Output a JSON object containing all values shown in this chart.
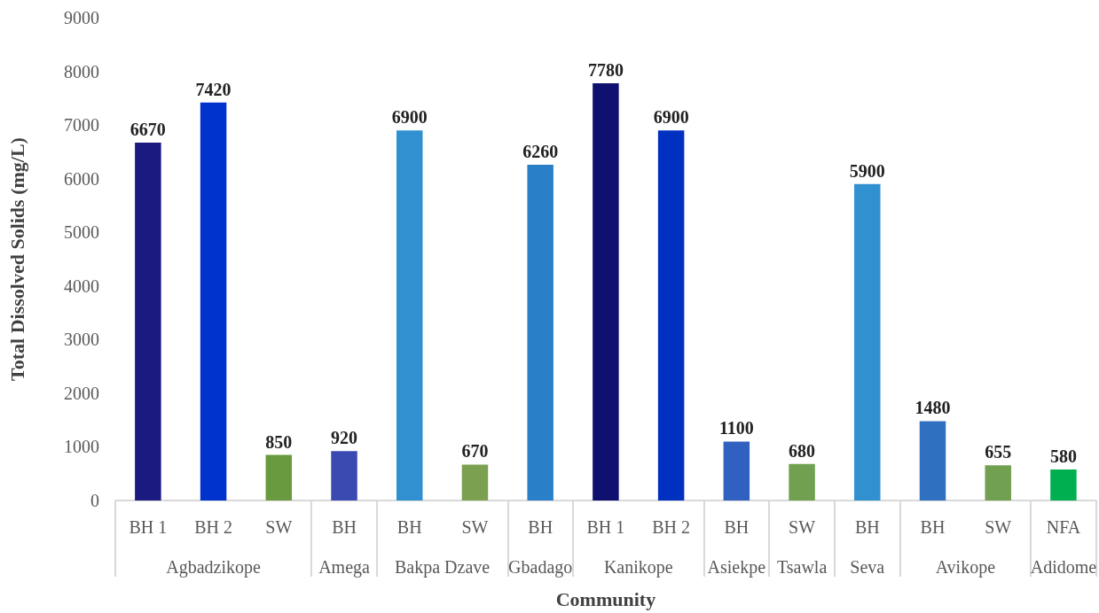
{
  "chart_data": {
    "type": "bar",
    "xlabel": "Community",
    "ylabel": "Total Dissolved Solids (mg/L)",
    "categories": [
      "BH 1",
      "BH 2",
      "SW",
      "BH",
      "BH",
      "SW",
      "BH",
      "BH 1",
      "BH 2",
      "BH",
      "SW",
      "BH",
      "BH",
      "SW",
      "NFA"
    ],
    "values": [
      6670,
      7420,
      850,
      920,
      6900,
      670,
      6260,
      7780,
      6900,
      1100,
      680,
      5900,
      1480,
      655,
      580
    ],
    "colors": [
      "#1a1a80",
      "#0033cc",
      "#6a9a40",
      "#3a4ab0",
      "#3090d0",
      "#7aa050",
      "#2a80c8",
      "#101070",
      "#0030c0",
      "#3060c0",
      "#70a050",
      "#3090d0",
      "#3070c0",
      "#70a050",
      "#00b050"
    ],
    "annotations": [
      "Agbadzikope",
      "Amega",
      "Bakpa Dzave",
      "Gbadago",
      "Kanikope",
      "Asiekpe",
      "Tsawla",
      "Seva",
      "Avikope",
      "Adidome"
    ],
    "ylim": [
      0,
      9000
    ],
    "yticks": [
      0,
      1000,
      2000,
      3000,
      4000,
      5000,
      6000,
      7000,
      8000,
      9000
    ],
    "data_labels": true
  }
}
